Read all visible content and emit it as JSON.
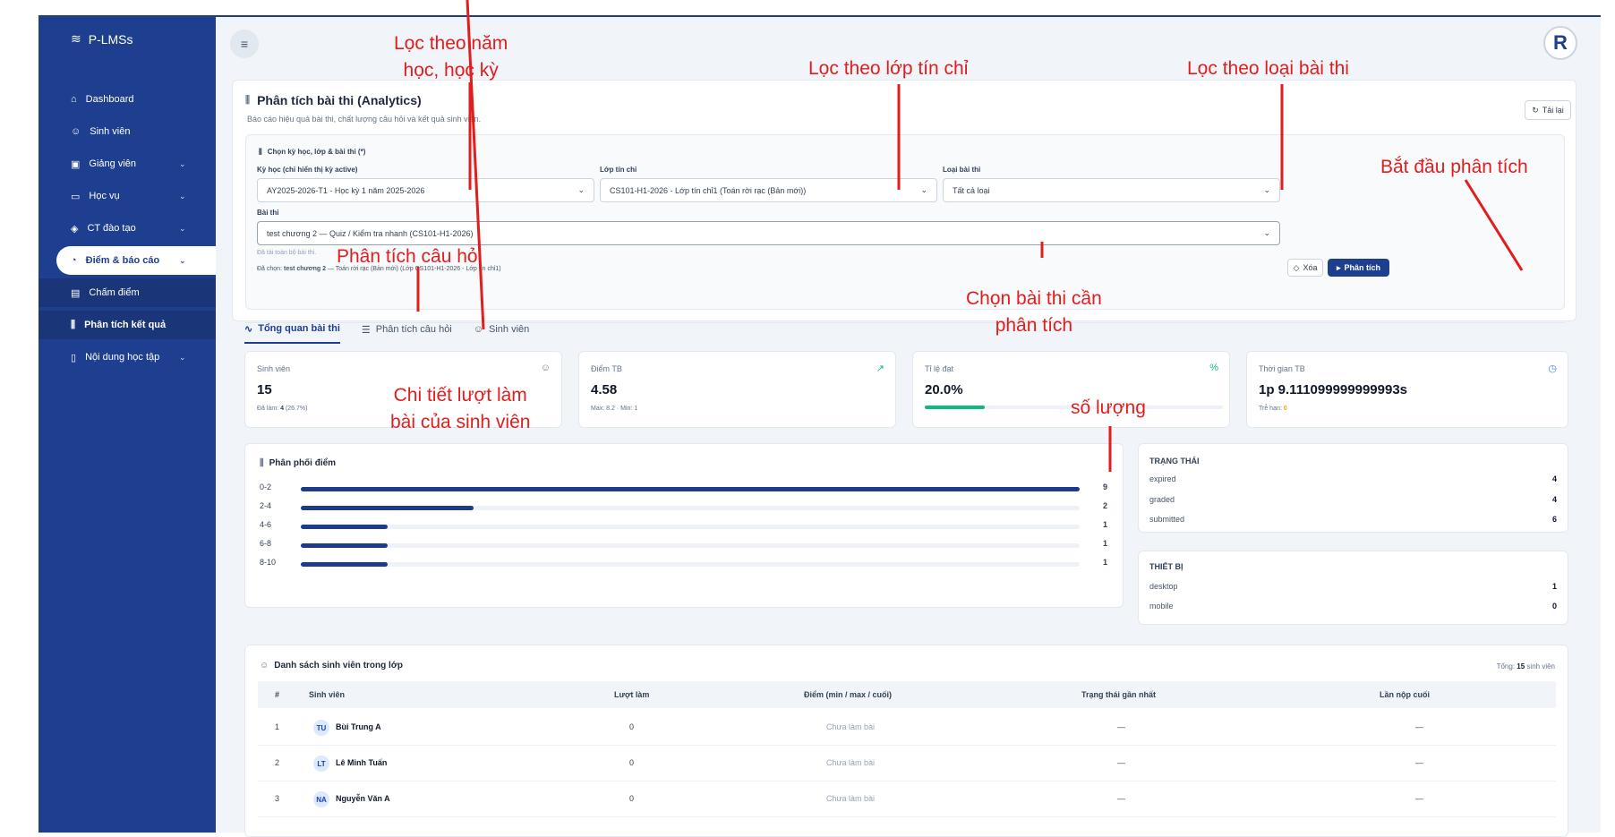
{
  "app": {
    "name": "P-LMSs"
  },
  "sidebar": {
    "items": [
      {
        "label": "Dashboard",
        "icon": "home-icon"
      },
      {
        "label": "Sinh viên",
        "icon": "users-icon"
      },
      {
        "label": "Giảng viên",
        "icon": "id-card-icon",
        "chevron": "⌄"
      },
      {
        "label": "Học vụ",
        "icon": "book-icon",
        "chevron": "⌄"
      },
      {
        "label": "CT đào tạo",
        "icon": "graduation-cap-icon",
        "chevron": "⌄"
      },
      {
        "label": "Điểm & báo cáo",
        "icon": "pie-chart-icon",
        "chevron": "⌄"
      },
      {
        "label": "Chấm điểm",
        "icon": "clipboard-icon"
      },
      {
        "label": "Phân tích kết quả",
        "icon": "bar-chart-icon"
      },
      {
        "label": "Nội dung học tập",
        "icon": "document-icon",
        "chevron": "⌄"
      }
    ]
  },
  "header": {
    "title": "Phân tích bài thi (Analytics)",
    "subtitle": "Báo cáo hiệu quả bài thi, chất lượng câu hỏi và kết quả sinh viên.",
    "reload_label": "Tải lại"
  },
  "filters": {
    "section_title": "Chọn kỳ học, lớp & bài thi (*)",
    "semester_label": "Kỳ học (chỉ hiển thị kỳ active)",
    "semester_value": "AY2025-2026-T1 - Học kỳ 1 năm 2025-2026",
    "class_label": "Lớp tín chỉ",
    "class_value": "CS101-H1-2026 - Lớp tín chỉ1 (Toán rời rạc (Bản mới))",
    "type_label": "Loại bài thi",
    "type_value": "Tất cả loại",
    "exam_label": "Bài thi",
    "exam_value": "test chương 2 — Quiz / Kiểm tra nhanh (CS101-H1-2026)",
    "loaded_note": "Đã tải toàn bộ bài thi.",
    "selected_prefix": "Đã chọn:",
    "selected_exam": "test chương 2",
    "selected_rest": "— Toán rời rạc (Bản mới) (Lớp CS101-H1-2026 - Lớp tín chỉ1)",
    "clear_label": "Xóa",
    "analyze_label": "Phân tích"
  },
  "tabs": [
    {
      "label": "Tổng quan bài thi",
      "icon": "activity-icon"
    },
    {
      "label": "Phân tích câu hỏi",
      "icon": "list-check-icon"
    },
    {
      "label": "Sinh viên",
      "icon": "user-icon"
    }
  ],
  "stats": [
    {
      "label": "Sinh viên",
      "value": "15",
      "sub_prefix": "Đã làm:",
      "sub_value": "4",
      "sub_suffix": "(26.7%)",
      "icon": "users-icon"
    },
    {
      "label": "Điểm TB",
      "value": "4.58",
      "sub_prefix": "Max: 8.2 · Min: 1",
      "icon": "trending-up-icon"
    },
    {
      "label": "Tỉ lệ đạt",
      "value": "20.0%",
      "progress": 0.2,
      "icon": "percent-icon"
    },
    {
      "label": "Thời gian TB",
      "value": "1p 9.111099999999993s",
      "sub_prefix": "Trễ hạn:",
      "sub_value": "0",
      "icon": "clock-icon"
    }
  ],
  "distribution": {
    "title": "Phân phối điểm",
    "rows": [
      {
        "range": "0-2",
        "count": 9
      },
      {
        "range": "2-4",
        "count": 2
      },
      {
        "range": "4-6",
        "count": 1
      },
      {
        "range": "6-8",
        "count": 1
      },
      {
        "range": "8-10",
        "count": 1
      }
    ]
  },
  "status_box": {
    "title": "TRẠNG THÁI",
    "rows": [
      {
        "label": "expired",
        "count": "4"
      },
      {
        "label": "graded",
        "count": "4"
      },
      {
        "label": "submitted",
        "count": "6"
      }
    ]
  },
  "device_box": {
    "title": "THIẾT BỊ",
    "rows": [
      {
        "label": "desktop",
        "count": "1"
      },
      {
        "label": "mobile",
        "count": "0"
      }
    ]
  },
  "students": {
    "title": "Danh sách sinh viên trong lớp",
    "total_prefix": "Tổng:",
    "total_value": "15",
    "total_suffix": "sinh viên",
    "columns": [
      "#",
      "Sinh viên",
      "Lượt làm",
      "Điểm (min / max / cuối)",
      "Trạng thái gần nhất",
      "Lần nộp cuối"
    ],
    "rows": [
      {
        "no": "1",
        "initials": "TU",
        "name": "Bùi Trung A",
        "attempts": "0",
        "score": "Chưa làm bài",
        "status": "—",
        "last": "—"
      },
      {
        "no": "2",
        "initials": "LT",
        "name": "Lê Minh Tuấn",
        "attempts": "0",
        "score": "Chưa làm bài",
        "status": "—",
        "last": "—"
      },
      {
        "no": "3",
        "initials": "NA",
        "name": "Nguyễn Văn A",
        "attempts": "0",
        "score": "Chưa làm bài",
        "status": "—",
        "last": "—"
      }
    ]
  },
  "annotations": {
    "semester": "Lọc theo năm\nhọc, học kỳ",
    "class": "Lọc theo lớp tín chỉ",
    "type": "Lọc theo loại bài thi",
    "analyze": "Bắt đầu phân tích",
    "questions": "Phân tích câu hỏi",
    "exam": "Chọn bài thi cần\nphân tích",
    "students": "Chi tiết lượt làm\nbài của sinh viên",
    "quantity": "số lượng"
  },
  "colors": {
    "primary": "#1e3f8f",
    "bar": "#1e3a8a",
    "annotation": "#e11d1d",
    "success": "#10b981"
  }
}
